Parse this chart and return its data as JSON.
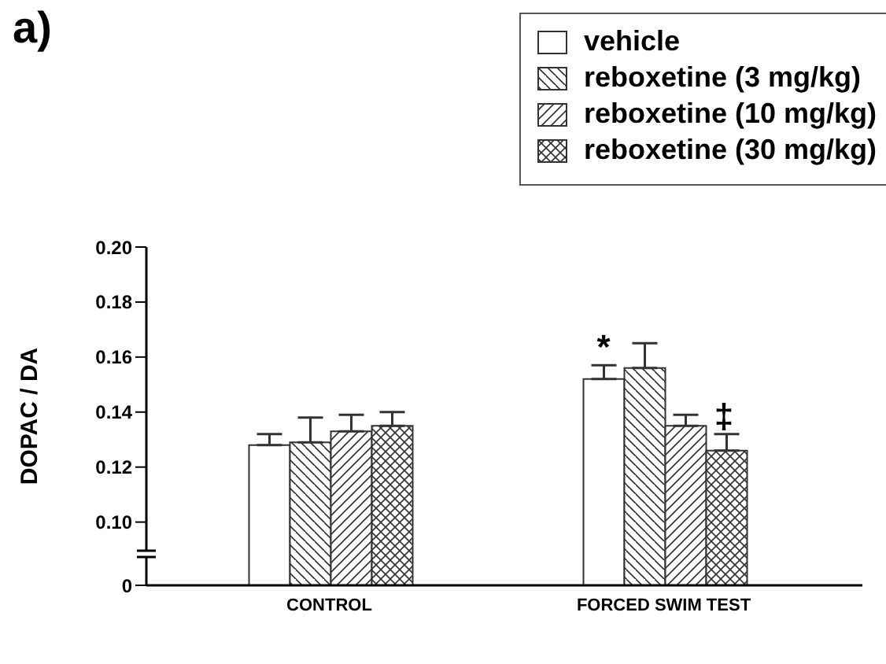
{
  "chart_data": {
    "type": "bar",
    "title": "a)",
    "ylabel": "DOPAC / DA",
    "categories": [
      "CONTROL",
      "FORCED SWIM TEST"
    ],
    "series": [
      {
        "name": "vehicle",
        "color": "#ffffff",
        "values": [
          0.128,
          0.152
        ],
        "errors": [
          [
            0.128,
            0.132
          ],
          [
            0.152,
            0.157
          ]
        ]
      },
      {
        "name": "reboxetine (3 mg/kg)",
        "color": "#333333",
        "values": [
          0.129,
          0.156
        ],
        "errors": [
          [
            0.129,
            0.138
          ],
          [
            0.156,
            0.165
          ]
        ]
      },
      {
        "name": "reboxetine (10 mg/kg)",
        "color": "#333333",
        "values": [
          0.133,
          0.135
        ],
        "errors": [
          [
            0.133,
            0.139
          ],
          [
            0.135,
            0.139
          ]
        ]
      },
      {
        "name": "reboxetine (30 mg/kg)",
        "color": "#333333",
        "values": [
          0.135,
          0.126
        ],
        "errors": [
          [
            0.135,
            0.14
          ],
          [
            0.126,
            0.132
          ]
        ]
      }
    ],
    "ylim": [
      0.077,
      0.2
    ],
    "yticks": [
      {
        "value": 0.077,
        "label": "0"
      },
      {
        "value": 0.1,
        "label": "0.10"
      },
      {
        "value": 0.12,
        "label": "0.12"
      },
      {
        "value": 0.14,
        "label": "0.14"
      },
      {
        "value": 0.16,
        "label": "0.16"
      },
      {
        "value": 0.18,
        "label": "0.18"
      },
      {
        "value": 0.2,
        "label": "0.20"
      }
    ],
    "legend": "top right",
    "annotations": [
      {
        "text": "*",
        "x": "FORCED SWIM TEST",
        "y": 0.157
      },
      {
        "text": "‡",
        "x": "FORCED SWIM TEST",
        "y": 0.132
      }
    ]
  }
}
